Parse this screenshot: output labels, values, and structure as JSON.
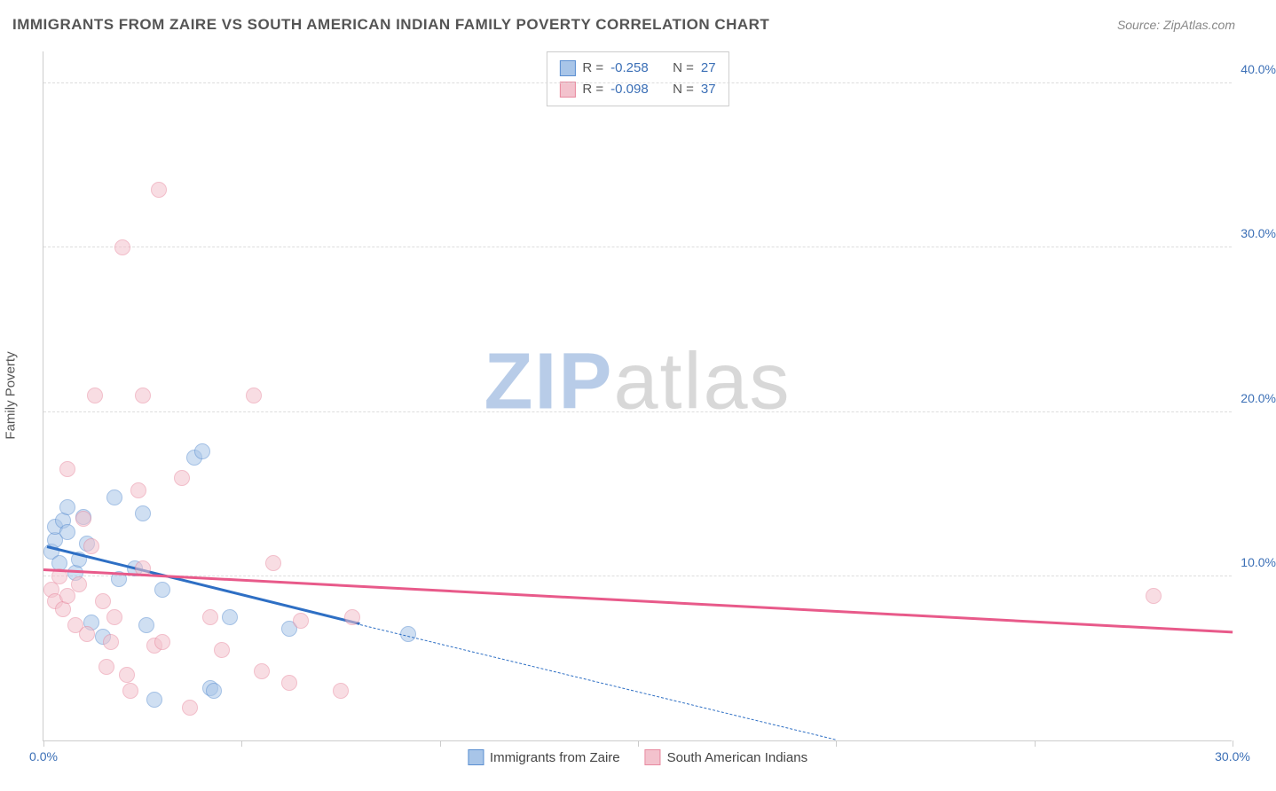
{
  "title": "IMMIGRANTS FROM ZAIRE VS SOUTH AMERICAN INDIAN FAMILY POVERTY CORRELATION CHART",
  "source": "Source: ZipAtlas.com",
  "ylabel": "Family Poverty",
  "watermark": {
    "part1": "ZIP",
    "part2": "atlas",
    "color1": "#b8cce8",
    "color2": "#d8d8d8"
  },
  "chart": {
    "type": "scatter",
    "background_color": "#ffffff",
    "grid_color": "#dddddd",
    "axis_color": "#cccccc",
    "tick_label_color": "#3b6fb6",
    "xlim": [
      0,
      30
    ],
    "ylim": [
      0,
      42
    ],
    "xticks": [
      0,
      5,
      10,
      15,
      20,
      25,
      30
    ],
    "xtick_labels": {
      "0": "0.0%",
      "30": "30.0%"
    },
    "yticks": [
      10,
      20,
      30,
      40
    ],
    "ytick_labels": {
      "10": "10.0%",
      "20": "20.0%",
      "30": "30.0%",
      "40": "40.0%"
    },
    "marker_radius": 9,
    "marker_opacity": 0.55,
    "series": [
      {
        "name": "Immigrants from Zaire",
        "color_fill": "#a8c5e8",
        "color_stroke": "#5b8fd1",
        "line_color": "#2e6fc4",
        "R": "-0.258",
        "N": "27",
        "regression": {
          "x1": 0.1,
          "y1": 11.7,
          "x2": 8.0,
          "y2": 7.0,
          "dash_x2": 20.0,
          "dash_y2": 0.0
        },
        "points": [
          [
            0.2,
            11.5
          ],
          [
            0.3,
            12.2
          ],
          [
            0.3,
            13.0
          ],
          [
            0.4,
            10.8
          ],
          [
            0.5,
            13.4
          ],
          [
            0.6,
            12.7
          ],
          [
            0.6,
            14.2
          ],
          [
            0.8,
            10.2
          ],
          [
            0.9,
            11.0
          ],
          [
            1.0,
            13.6
          ],
          [
            1.1,
            12.0
          ],
          [
            1.2,
            7.2
          ],
          [
            1.5,
            6.3
          ],
          [
            1.8,
            14.8
          ],
          [
            1.9,
            9.8
          ],
          [
            2.3,
            10.5
          ],
          [
            2.5,
            13.8
          ],
          [
            2.6,
            7.0
          ],
          [
            2.8,
            2.5
          ],
          [
            3.0,
            9.2
          ],
          [
            3.8,
            17.2
          ],
          [
            4.0,
            17.6
          ],
          [
            4.2,
            3.2
          ],
          [
            4.3,
            3.0
          ],
          [
            4.7,
            7.5
          ],
          [
            6.2,
            6.8
          ],
          [
            9.2,
            6.5
          ]
        ]
      },
      {
        "name": "South American Indians",
        "color_fill": "#f3c2cd",
        "color_stroke": "#e88aa0",
        "line_color": "#e85a8a",
        "R": "-0.098",
        "N": "37",
        "regression": {
          "x1": 0.0,
          "y1": 10.3,
          "x2": 30.0,
          "y2": 6.5
        },
        "points": [
          [
            0.2,
            9.2
          ],
          [
            0.3,
            8.5
          ],
          [
            0.4,
            10.0
          ],
          [
            0.5,
            8.0
          ],
          [
            0.6,
            16.5
          ],
          [
            0.6,
            8.8
          ],
          [
            0.8,
            7.0
          ],
          [
            0.9,
            9.5
          ],
          [
            1.0,
            13.5
          ],
          [
            1.1,
            6.5
          ],
          [
            1.3,
            21.0
          ],
          [
            1.5,
            8.5
          ],
          [
            1.6,
            4.5
          ],
          [
            1.7,
            6.0
          ],
          [
            1.8,
            7.5
          ],
          [
            2.0,
            30.0
          ],
          [
            2.1,
            4.0
          ],
          [
            2.2,
            3.0
          ],
          [
            2.4,
            15.2
          ],
          [
            2.5,
            21.0
          ],
          [
            2.5,
            10.5
          ],
          [
            2.8,
            5.8
          ],
          [
            2.9,
            33.5
          ],
          [
            3.0,
            6.0
          ],
          [
            3.5,
            16.0
          ],
          [
            3.7,
            2.0
          ],
          [
            4.2,
            7.5
          ],
          [
            4.5,
            5.5
          ],
          [
            5.3,
            21.0
          ],
          [
            5.5,
            4.2
          ],
          [
            5.8,
            10.8
          ],
          [
            6.2,
            3.5
          ],
          [
            6.5,
            7.3
          ],
          [
            7.5,
            3.0
          ],
          [
            7.8,
            7.5
          ],
          [
            28.0,
            8.8
          ],
          [
            1.2,
            11.8
          ]
        ]
      }
    ],
    "legend_top": {
      "label_color": "#555555",
      "value_color": "#3b6fb6"
    },
    "legend_bottom_color": "#444444"
  }
}
